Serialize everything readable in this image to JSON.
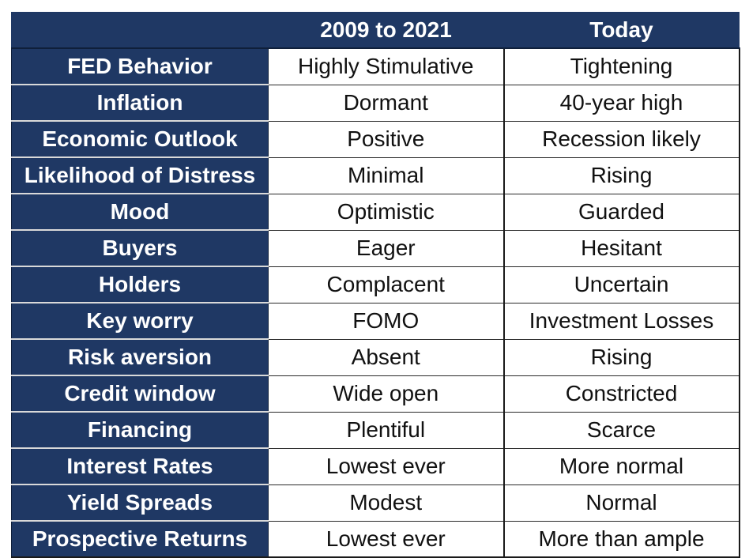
{
  "header": {
    "corner": "",
    "col1": "2009 to 2021",
    "col2": "Today"
  },
  "rows": [
    {
      "label": "FED Behavior",
      "past": "Highly Stimulative",
      "today": "Tightening"
    },
    {
      "label": "Inflation",
      "past": "Dormant",
      "today": "40-year high"
    },
    {
      "label": "Economic Outlook",
      "past": "Positive",
      "today": "Recession likely"
    },
    {
      "label": "Likelihood of Distress",
      "past": "Minimal",
      "today": "Rising"
    },
    {
      "label": "Mood",
      "past": "Optimistic",
      "today": "Guarded"
    },
    {
      "label": "Buyers",
      "past": "Eager",
      "today": "Hesitant"
    },
    {
      "label": "Holders",
      "past": "Complacent",
      "today": "Uncertain"
    },
    {
      "label": "Key worry",
      "past": "FOMO",
      "today": "Investment Losses"
    },
    {
      "label": "Risk aversion",
      "past": "Absent",
      "today": "Rising"
    },
    {
      "label": "Credit window",
      "past": "Wide open",
      "today": "Constricted"
    },
    {
      "label": "Financing",
      "past": "Plentiful",
      "today": "Scarce"
    },
    {
      "label": "Interest Rates",
      "past": "Lowest ever",
      "today": "More normal"
    },
    {
      "label": "Yield Spreads",
      "past": "Modest",
      "today": "Normal"
    },
    {
      "label": "Prospective Returns",
      "past": "Lowest ever",
      "today": "More than ample"
    }
  ],
  "colors": {
    "header_bg": "#1f3864",
    "header_text": "#ffffff",
    "cell_bg": "#ffffff",
    "cell_text": "#111111"
  }
}
